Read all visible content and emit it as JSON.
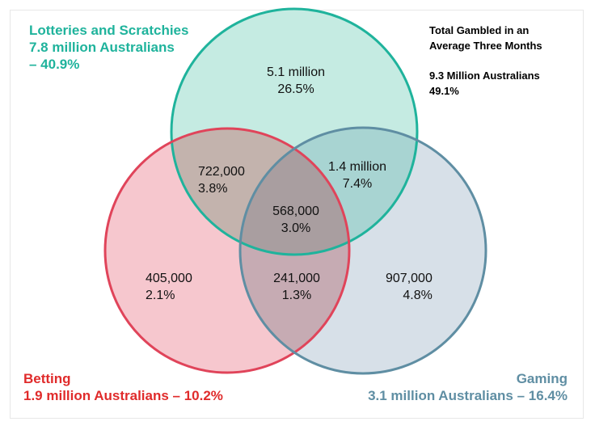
{
  "sets": {
    "lotteries": {
      "name": "Lotteries and Scratchies",
      "count": "7.8 million Australians",
      "percent": "– 40.9%",
      "color": "#1fb39c",
      "fill": "#c5ebe2"
    },
    "betting": {
      "name": "Betting",
      "summary": "1.9 million Australians – 10.2%",
      "color": "#e02b2b",
      "fill": "#f6c7ce"
    },
    "gaming": {
      "name": "Gaming",
      "summary": "3.1 million Australians – 16.4%",
      "color": "#5f8ea3",
      "fill": "#d7e0e8"
    }
  },
  "total": {
    "line1": "Total Gambled in an",
    "line2": "Average Three Months",
    "line3": "9.3 Million Australians",
    "line4": "49.1%"
  },
  "regions": {
    "lotteries_only": {
      "count": "5.1 million",
      "percent": "26.5%"
    },
    "lotteries_betting": {
      "count": "722,000",
      "percent": "3.8%"
    },
    "lotteries_gaming": {
      "count": "1.4 million",
      "percent": "7.4%"
    },
    "all_three": {
      "count": "568,000",
      "percent": "3.0%"
    },
    "betting_only": {
      "count": "405,000",
      "percent": "2.1%"
    },
    "betting_gaming": {
      "count": "241,000",
      "percent": "1.3%"
    },
    "gaming_only": {
      "count": "907,000",
      "percent": "4.8%"
    }
  }
}
